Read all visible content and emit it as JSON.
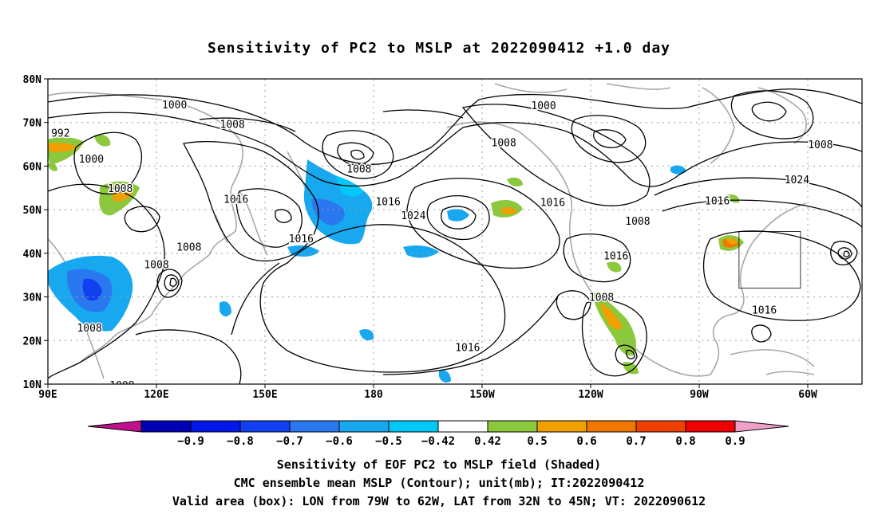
{
  "title": "Sensitivity of PC2 to MSLP at 2022090412 +1.0 day",
  "axes": {
    "lat_labels": [
      "80N",
      "70N",
      "60N",
      "50N",
      "40N",
      "30N",
      "20N",
      "10N"
    ],
    "lon_labels": [
      "90E",
      "120E",
      "150E",
      "180",
      "150W",
      "120W",
      "90W",
      "60W"
    ],
    "lat_values": [
      80,
      70,
      60,
      50,
      40,
      30,
      20,
      10
    ],
    "lon_values": [
      90,
      120,
      150,
      180,
      210,
      240,
      270,
      300
    ]
  },
  "contour_labels": [
    {
      "text": "1000",
      "lon": 125,
      "lat": 74
    },
    {
      "text": "1008",
      "lon": 141,
      "lat": 69.5
    },
    {
      "text": "992",
      "lon": 93.5,
      "lat": 67.5
    },
    {
      "text": "1000",
      "lon": 102,
      "lat": 61.5
    },
    {
      "text": "1008",
      "lon": 110,
      "lat": 54.8
    },
    {
      "text": "1016",
      "lon": 142,
      "lat": 52.3
    },
    {
      "text": "1008",
      "lon": 129,
      "lat": 41.3
    },
    {
      "text": "1008",
      "lon": 120,
      "lat": 37.3
    },
    {
      "text": "1008",
      "lon": 101.5,
      "lat": 22.8
    },
    {
      "text": "1008",
      "lon": 110.5,
      "lat": 9.6
    },
    {
      "text": "1016",
      "lon": 160,
      "lat": 43.3
    },
    {
      "text": "1008",
      "lon": 176,
      "lat": 59.3
    },
    {
      "text": "1016",
      "lon": 184,
      "lat": 51.8
    },
    {
      "text": "1024",
      "lon": 191,
      "lat": 48.6
    },
    {
      "text": "1000",
      "lon": 227,
      "lat": 73.8
    },
    {
      "text": "1008",
      "lon": 216,
      "lat": 65.3
    },
    {
      "text": "1016",
      "lon": 229.5,
      "lat": 51.6
    },
    {
      "text": "1008",
      "lon": 253,
      "lat": 47.3
    },
    {
      "text": "1016",
      "lon": 247,
      "lat": 39.3
    },
    {
      "text": "1008",
      "lon": 243,
      "lat": 29.8
    },
    {
      "text": "1016",
      "lon": 206,
      "lat": 18.3
    },
    {
      "text": "1008",
      "lon": 303.5,
      "lat": 64.8
    },
    {
      "text": "1024",
      "lon": 297,
      "lat": 56.8
    },
    {
      "text": "1016",
      "lon": 275,
      "lat": 51.9
    },
    {
      "text": "1016",
      "lon": 288,
      "lat": 26.9
    }
  ],
  "colorbar": {
    "labels": [
      "−0.9",
      "−0.8",
      "−0.7",
      "−0.6",
      "−0.5",
      "−0.42",
      "0.42",
      "0.5",
      "0.6",
      "0.7",
      "0.8",
      "0.9"
    ],
    "colors": [
      "#0000b4",
      "#0018e8",
      "#1040f0",
      "#2a78f0",
      "#18a8f0",
      "#00c8f8",
      "#ffffff",
      "#8cc83c",
      "#f0a000",
      "#f07800",
      "#f04000",
      "#f00000"
    ],
    "low_cap": "#c0108c",
    "high_cap": "#f0a0c8"
  },
  "valid_box": {
    "lon_min": -79,
    "lon_max": -62,
    "lat_min": 32,
    "lat_max": 45
  },
  "captions": {
    "line1": "Sensitivity of EOF PC2 to MSLP field (Shaded)",
    "line2": "CMC ensemble mean MSLP (Contour); unit(mb); IT:2022090412",
    "line3": "Valid area (box): LON from 79W to 62W, LAT from 32N to 45N; VT: 2022090612"
  }
}
